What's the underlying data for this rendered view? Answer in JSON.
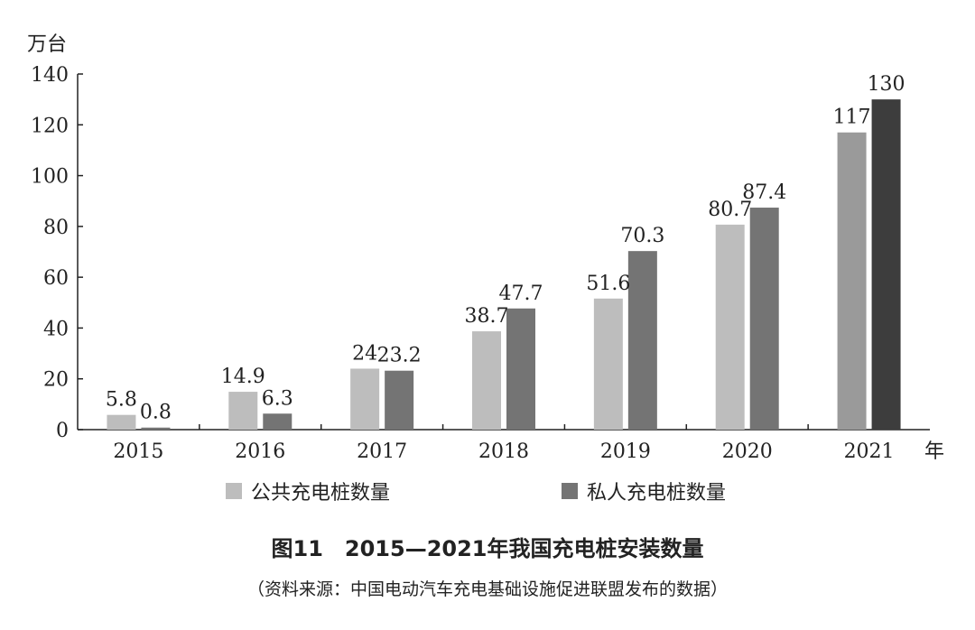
{
  "chart_data": {
    "type": "bar",
    "unit_label": "万台",
    "x_unit": "年",
    "categories": [
      "2015",
      "2016",
      "2017",
      "2018",
      "2019",
      "2020",
      "2021"
    ],
    "series": [
      {
        "name": "公共充电桩数量",
        "values": [
          5.8,
          14.9,
          24,
          38.7,
          51.6,
          80.7,
          117
        ],
        "labels": [
          "5.8",
          "14.9",
          "24",
          "38.7",
          "51.6",
          "80.7",
          "117"
        ],
        "color": "#bdbdbd",
        "color_last": "#9a9a9a"
      },
      {
        "name": "私人充电桩数量",
        "values": [
          0.8,
          6.3,
          23.2,
          47.7,
          70.3,
          87.4,
          130
        ],
        "labels": [
          "0.8",
          "6.3",
          "23.2",
          "47.7",
          "70.3",
          "87.4",
          "130"
        ],
        "color": "#747474",
        "color_last": "#3d3d3d"
      }
    ],
    "yticks": [
      0,
      20,
      40,
      60,
      80,
      100,
      120,
      140
    ],
    "ylim": [
      0,
      140
    ],
    "grid": false,
    "legend_position": "bottom"
  },
  "caption": "图11　2015—2021年我国充电桩安装数量",
  "source": "（资料来源：中国电动汽车充电基础设施促进联盟发布的数据）"
}
